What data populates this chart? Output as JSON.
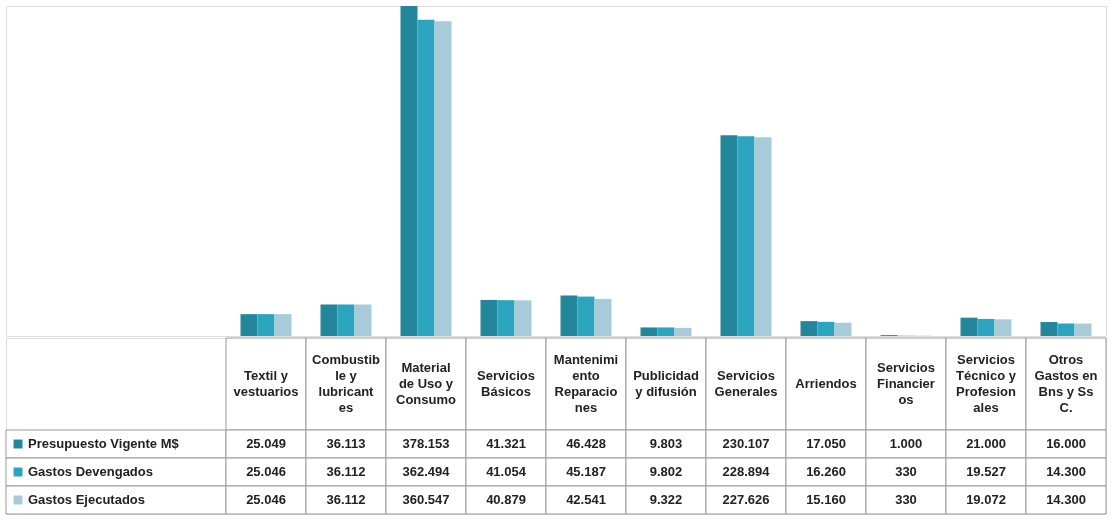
{
  "chart_data": {
    "type": "bar",
    "categories": [
      "Textil y vestuarios",
      "Combustible y lubricantes",
      "Material de Uso y Consumo",
      "Servicios Básicos",
      "Mantenimiento Reparaciones",
      "Publicidad y difusión",
      "Servicios Generales",
      "Arriendos",
      "Servicios Financieros",
      "Servicios Técnico y Profesionales",
      "Otros Gastos en Bns y Ss C."
    ],
    "series": [
      {
        "name": "Presupuesto Vigente M$",
        "color": "#23869b",
        "values": [
          25049,
          36113,
          378153,
          41321,
          46428,
          9803,
          230107,
          17050,
          1000,
          21000,
          16000
        ],
        "value_labels": [
          "25.049",
          "36.113",
          "378.153",
          "41.321",
          "46.428",
          "9.803",
          "230.107",
          "17.050",
          "1.000",
          "21.000",
          "16.000"
        ]
      },
      {
        "name": "Gastos Devengados",
        "color": "#2ba4c0",
        "values": [
          25046,
          36112,
          362494,
          41054,
          45187,
          9802,
          228894,
          16260,
          330,
          19527,
          14300
        ],
        "value_labels": [
          "25.046",
          "36.112",
          "362.494",
          "41.054",
          "45.187",
          "9.802",
          "228.894",
          "16.260",
          "330",
          "19.527",
          "14.300"
        ]
      },
      {
        "name": "Gastos Ejecutados",
        "color": "#a7cbd9",
        "values": [
          25046,
          36112,
          360547,
          40879,
          42541,
          9322,
          227626,
          15160,
          330,
          19072,
          14300
        ],
        "value_labels": [
          "25.046",
          "36.112",
          "360.547",
          "40.879",
          "42.541",
          "9.322",
          "227.626",
          "15.160",
          "330",
          "19.072",
          "14.300"
        ]
      }
    ],
    "legend": "bottom left",
    "grid": false
  }
}
